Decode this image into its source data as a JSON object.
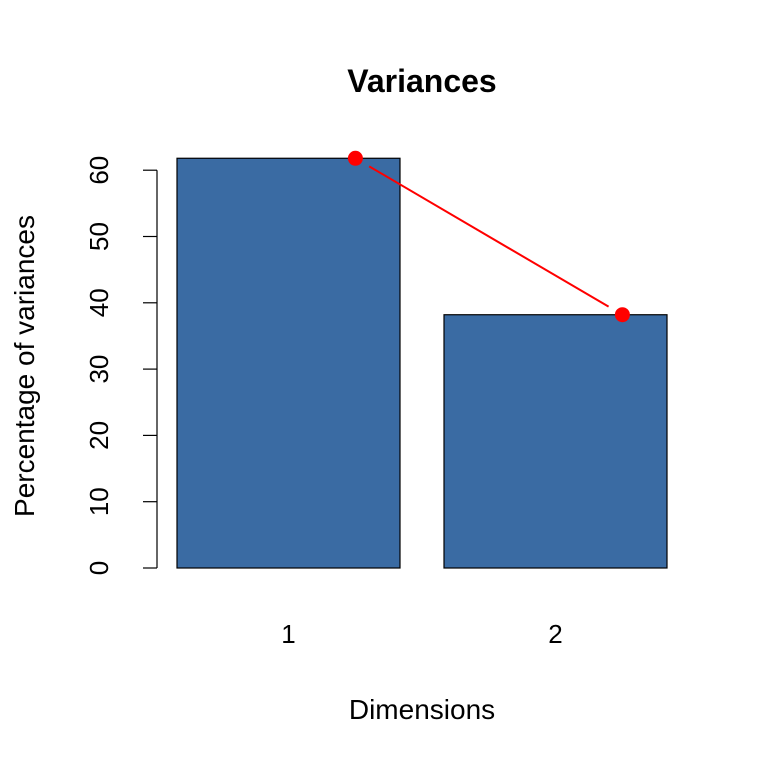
{
  "chart_data": {
    "type": "bar",
    "title": "Variances",
    "xlabel": "Dimensions",
    "ylabel": "Percentage of variances",
    "categories": [
      "1",
      "2"
    ],
    "values": [
      61.8,
      38.2
    ],
    "ylim": [
      0,
      60
    ],
    "yticks": [
      0,
      10,
      20,
      30,
      40,
      50,
      60
    ],
    "grid": false,
    "legend": "none",
    "bar_color": "#3A6BA3",
    "line_color": "#FF0000"
  }
}
